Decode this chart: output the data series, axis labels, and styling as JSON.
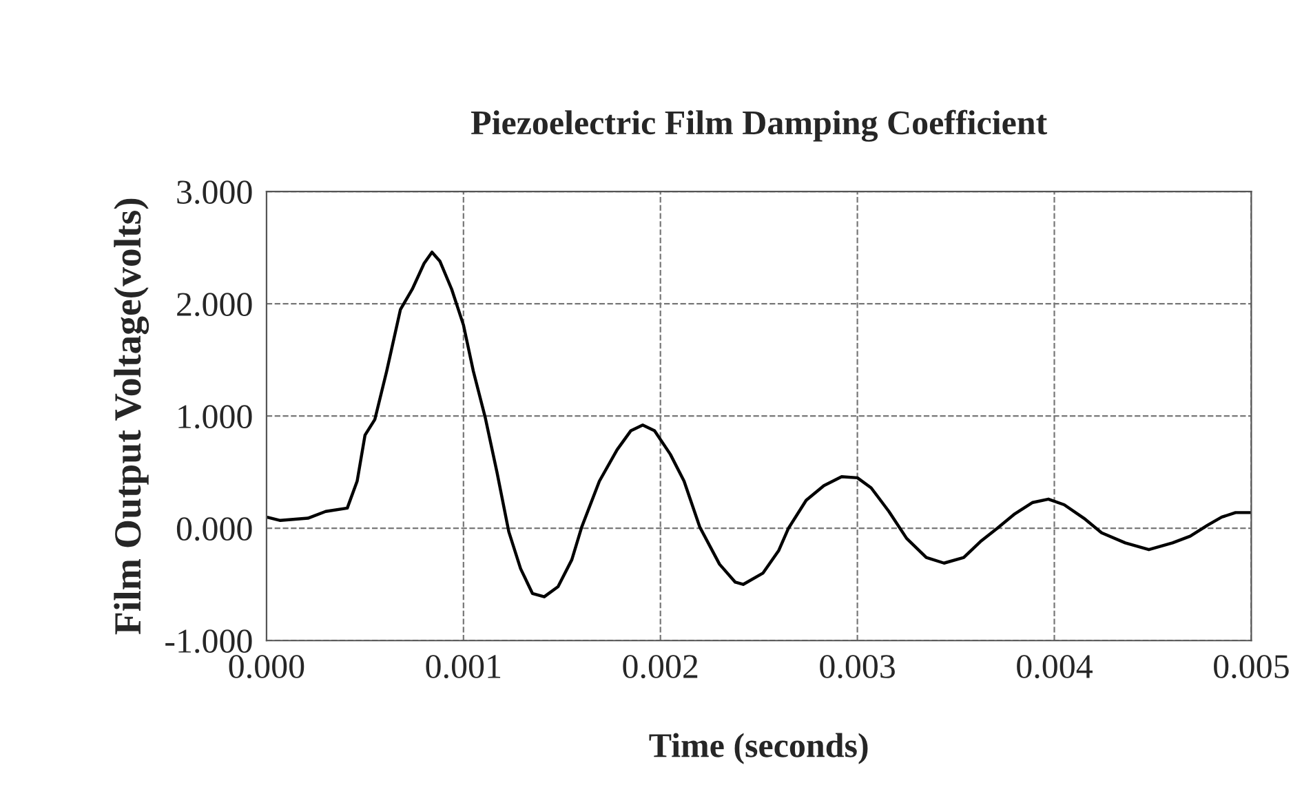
{
  "chart_data": {
    "type": "line",
    "title": "Piezoelectric Film Damping Coefficient",
    "xlabel": "Time (seconds)",
    "ylabel": "Film Output Voltage(volts)",
    "x": [
      0,
      7e-05,
      0.00021,
      0.0003,
      0.00041,
      0.00046,
      0.0005,
      0.00055,
      0.00061,
      0.00068,
      0.00074,
      0.0008,
      0.00084,
      0.00088,
      0.00094,
      0.001,
      0.00105,
      0.00111,
      0.00117,
      0.00123,
      0.00129,
      0.00135,
      0.00141,
      0.00148,
      0.00155,
      0.0016,
      0.00169,
      0.00178,
      0.00185,
      0.00191,
      0.00197,
      0.00205,
      0.00212,
      0.0022,
      0.0023,
      0.00238,
      0.00242,
      0.00252,
      0.0026,
      0.00265,
      0.00274,
      0.00283,
      0.00292,
      0.003,
      0.00307,
      0.00316,
      0.00325,
      0.00335,
      0.00344,
      0.00354,
      0.00363,
      0.00371,
      0.0038,
      0.00389,
      0.00397,
      0.00405,
      0.00415,
      0.00424,
      0.00436,
      0.00448,
      0.0046,
      0.00469,
      0.00478,
      0.00485,
      0.00492,
      0.005
    ],
    "series": [
      {
        "color": "#000000",
        "values": [
          0.1,
          0.07,
          0.09,
          0.15,
          0.18,
          0.42,
          0.83,
          0.97,
          1.4,
          1.95,
          2.13,
          2.36,
          2.46,
          2.38,
          2.13,
          1.81,
          1.4,
          0.99,
          0.5,
          -0.03,
          -0.36,
          -0.58,
          -0.61,
          -0.52,
          -0.28,
          0.01,
          0.42,
          0.7,
          0.87,
          0.92,
          0.87,
          0.66,
          0.42,
          0.01,
          -0.32,
          -0.48,
          -0.5,
          -0.4,
          -0.2,
          0.0,
          0.25,
          0.38,
          0.46,
          0.45,
          0.36,
          0.15,
          -0.09,
          -0.26,
          -0.31,
          -0.26,
          -0.11,
          0.0,
          0.13,
          0.23,
          0.26,
          0.21,
          0.09,
          -0.04,
          -0.13,
          -0.19,
          -0.13,
          -0.07,
          0.03,
          0.1,
          0.14,
          0.14
        ]
      }
    ],
    "xlim": [
      0,
      0.005
    ],
    "ylim": [
      -1,
      3
    ],
    "xticks": [
      {
        "value": 0,
        "label": "0.000"
      },
      {
        "value": 0.001,
        "label": "0.001"
      },
      {
        "value": 0.002,
        "label": "0.002"
      },
      {
        "value": 0.003,
        "label": "0.003"
      },
      {
        "value": 0.004,
        "label": "0.004"
      },
      {
        "value": 0.005,
        "label": "0.005"
      }
    ],
    "yticks": [
      {
        "value": -1,
        "label": "-1.000"
      },
      {
        "value": 0,
        "label": "0.000"
      },
      {
        "value": 1,
        "label": "1.000"
      },
      {
        "value": 2,
        "label": "2.000"
      },
      {
        "value": 3,
        "label": "3.000"
      }
    ],
    "grid": true,
    "marker": "none",
    "line_style": "solid"
  }
}
